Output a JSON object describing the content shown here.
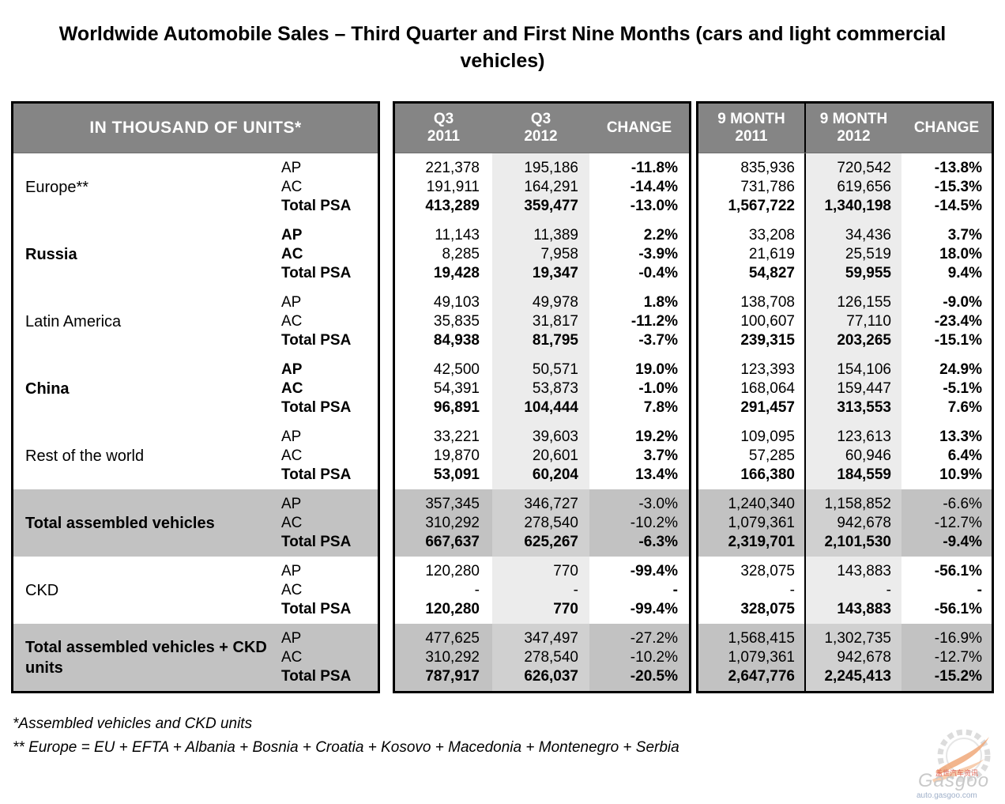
{
  "title": "Worldwide Automobile Sales – Third Quarter and First Nine Months (cars and light commercial vehicles)",
  "table": {
    "unit_header": "IN THOUSAND OF UNITS*",
    "columns": [
      {
        "line1": "Q3",
        "line2": "2011"
      },
      {
        "line1": "Q3",
        "line2": "2012"
      },
      {
        "line1": "CHANGE",
        "line2": ""
      },
      {
        "line1": "9 MONTH",
        "line2": "2011"
      },
      {
        "line1": "9 MONTH",
        "line2": "2012"
      },
      {
        "line1": "CHANGE",
        "line2": ""
      }
    ],
    "row_labels": [
      "AP",
      "AC",
      "Total PSA"
    ],
    "groups": [
      {
        "region": "Europe**",
        "emph": false,
        "shade": "white",
        "bold_change": true,
        "rows": [
          {
            "label": "AP",
            "values": [
              "221,378",
              "195,186",
              "-11.8%",
              "835,936",
              "720,542",
              "-13.8%"
            ]
          },
          {
            "label": "AC",
            "values": [
              "191,911",
              "164,291",
              "-14.4%",
              "731,786",
              "619,656",
              "-15.3%"
            ]
          },
          {
            "label": "Total PSA",
            "values": [
              "413,289",
              "359,477",
              "-13.0%",
              "1,567,722",
              "1,340,198",
              "-14.5%"
            ]
          }
        ]
      },
      {
        "region": "Russia",
        "emph": true,
        "shade": "white",
        "bold_change": true,
        "rows": [
          {
            "label": "AP",
            "values": [
              "11,143",
              "11,389",
              "2.2%",
              "33,208",
              "34,436",
              "3.7%"
            ]
          },
          {
            "label": "AC",
            "values": [
              "8,285",
              "7,958",
              "-3.9%",
              "21,619",
              "25,519",
              "18.0%"
            ]
          },
          {
            "label": "Total PSA",
            "values": [
              "19,428",
              "19,347",
              "-0.4%",
              "54,827",
              "59,955",
              "9.4%"
            ]
          }
        ]
      },
      {
        "region": "Latin America",
        "emph": false,
        "shade": "white",
        "bold_change": true,
        "rows": [
          {
            "label": "AP",
            "values": [
              "49,103",
              "49,978",
              "1.8%",
              "138,708",
              "126,155",
              "-9.0%"
            ]
          },
          {
            "label": "AC",
            "values": [
              "35,835",
              "31,817",
              "-11.2%",
              "100,607",
              "77,110",
              "-23.4%"
            ]
          },
          {
            "label": "Total PSA",
            "values": [
              "84,938",
              "81,795",
              "-3.7%",
              "239,315",
              "203,265",
              "-15.1%"
            ]
          }
        ]
      },
      {
        "region": "China",
        "emph": true,
        "shade": "white",
        "bold_change": true,
        "rows": [
          {
            "label": "AP",
            "values": [
              "42,500",
              "50,571",
              "19.0%",
              "123,393",
              "154,106",
              "24.9%"
            ]
          },
          {
            "label": "AC",
            "values": [
              "54,391",
              "53,873",
              "-1.0%",
              "168,064",
              "159,447",
              "-5.1%"
            ]
          },
          {
            "label": "Total PSA",
            "values": [
              "96,891",
              "104,444",
              "7.8%",
              "291,457",
              "313,553",
              "7.6%"
            ]
          }
        ]
      },
      {
        "region": "Rest of the world",
        "emph": false,
        "shade": "white",
        "bold_change": true,
        "rows": [
          {
            "label": "AP",
            "values": [
              "33,221",
              "39,603",
              "19.2%",
              "109,095",
              "123,613",
              "13.3%"
            ]
          },
          {
            "label": "AC",
            "values": [
              "19,870",
              "20,601",
              "3.7%",
              "57,285",
              "60,946",
              "6.4%"
            ]
          },
          {
            "label": "Total PSA",
            "values": [
              "53,091",
              "60,204",
              "13.4%",
              "166,380",
              "184,559",
              "10.9%"
            ]
          }
        ]
      },
      {
        "region": "Total assembled vehicles",
        "emph": false,
        "shade": "gray",
        "bold_change": false,
        "rows": [
          {
            "label": "AP",
            "values": [
              "357,345",
              "346,727",
              "-3.0%",
              "1,240,340",
              "1,158,852",
              "-6.6%"
            ]
          },
          {
            "label": "AC",
            "values": [
              "310,292",
              "278,540",
              "-10.2%",
              "1,079,361",
              "942,678",
              "-12.7%"
            ]
          },
          {
            "label": "Total PSA",
            "values": [
              "667,637",
              "625,267",
              "-6.3%",
              "2,319,701",
              "2,101,530",
              "-9.4%"
            ]
          }
        ]
      },
      {
        "region": "CKD",
        "emph": false,
        "shade": "white",
        "bold_change": true,
        "rows": [
          {
            "label": "AP",
            "values": [
              "120,280",
              "770",
              "-99.4%",
              "328,075",
              "143,883",
              "-56.1%"
            ]
          },
          {
            "label": "AC",
            "values": [
              "-",
              "-",
              "-",
              "-",
              "-",
              "-"
            ]
          },
          {
            "label": "Total PSA",
            "values": [
              "120,280",
              "770",
              "-99.4%",
              "328,075",
              "143,883",
              "-56.1%"
            ]
          }
        ]
      },
      {
        "region": "Total assembled vehicles + CKD units",
        "emph": false,
        "shade": "gray",
        "bold_change": false,
        "rows": [
          {
            "label": "AP",
            "values": [
              "477,625",
              "347,497",
              "-27.2%",
              "1,568,415",
              "1,302,735",
              "-16.9%"
            ]
          },
          {
            "label": "AC",
            "values": [
              "310,292",
              "278,540",
              "-10.2%",
              "1,079,361",
              "942,678",
              "-12.7%"
            ]
          },
          {
            "label": "Total PSA",
            "values": [
              "787,917",
              "626,037",
              "-20.5%",
              "2,647,776",
              "2,245,413",
              "-15.2%"
            ]
          }
        ]
      }
    ]
  },
  "footnotes": [
    "*Assembled vehicles and CKD units",
    "** Europe = EU + EFTA + Albania + Bosnia + Croatia + Kosovo + Macedonia + Montenegro + Serbia"
  ],
  "watermark": {
    "brand": "Gasgoo",
    "cn_text": "盖世汽车资讯",
    "site": "auto.gasgoo.com"
  },
  "colors": {
    "header_bg": "#858585",
    "section_gray": "#c2c2c2",
    "column_light": "#ececec",
    "column_light_on_gray": "#d0d0d0",
    "watermark_orange": "#f0a879",
    "watermark_red": "#e06050"
  }
}
